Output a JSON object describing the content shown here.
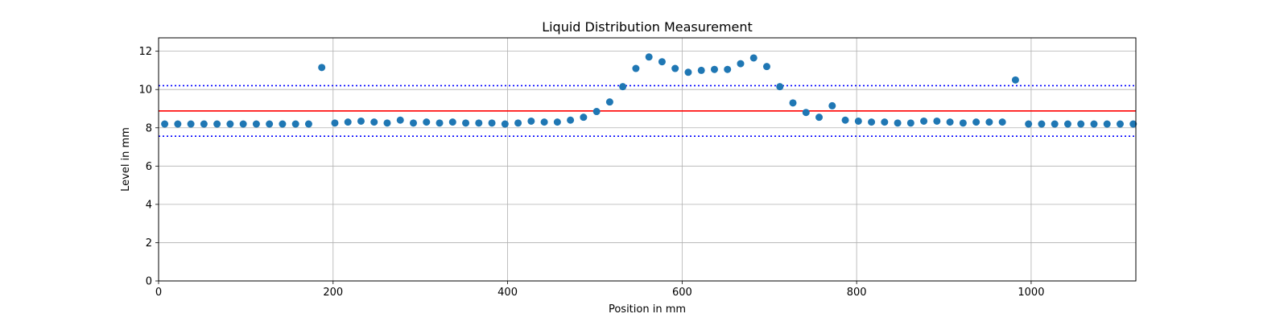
{
  "chart_data": {
    "type": "scatter",
    "title": "Liquid Distribution Measurement",
    "xlabel": "Position in mm",
    "ylabel": "Level in mm",
    "xlim": [
      0,
      1120
    ],
    "ylim": [
      0,
      12.7
    ],
    "xticks": [
      0,
      200,
      400,
      600,
      800,
      1000
    ],
    "yticks": [
      0,
      2,
      4,
      6,
      8,
      10,
      12
    ],
    "grid": true,
    "point_color": "#1f77b4",
    "reference_lines": [
      {
        "y": 8.88,
        "color": "#ff0000",
        "style": "solid"
      },
      {
        "y": 10.2,
        "color": "#0000ff",
        "style": "dotted"
      },
      {
        "y": 7.56,
        "color": "#0000ff",
        "style": "dotted"
      }
    ],
    "x": [
      7,
      22,
      37,
      52,
      67,
      82,
      97,
      112,
      127,
      142,
      157,
      172,
      187,
      202,
      217,
      232,
      247,
      262,
      277,
      292,
      307,
      322,
      337,
      352,
      367,
      382,
      397,
      412,
      427,
      442,
      457,
      472,
      487,
      502,
      517,
      532,
      547,
      562,
      577,
      592,
      607,
      622,
      637,
      652,
      667,
      682,
      697,
      712,
      727,
      742,
      757,
      772,
      787,
      802,
      817,
      832,
      847,
      862,
      877,
      892,
      907,
      922,
      937,
      952,
      967,
      982,
      997,
      1012,
      1027,
      1042,
      1057,
      1072,
      1087,
      1102,
      1117
    ],
    "y": [
      8.2,
      8.2,
      8.2,
      8.2,
      8.2,
      8.2,
      8.2,
      8.2,
      8.2,
      8.2,
      8.2,
      8.2,
      11.15,
      8.25,
      8.3,
      8.35,
      8.3,
      8.25,
      8.4,
      8.25,
      8.3,
      8.25,
      8.3,
      8.25,
      8.25,
      8.25,
      8.2,
      8.25,
      8.35,
      8.3,
      8.3,
      8.4,
      8.55,
      8.85,
      9.35,
      10.15,
      11.1,
      11.7,
      11.45,
      11.1,
      10.9,
      11.0,
      11.05,
      11.05,
      11.35,
      11.65,
      11.2,
      10.15,
      9.3,
      8.8,
      8.55,
      9.15,
      8.4,
      8.35,
      8.3,
      8.3,
      8.25,
      8.25,
      8.35,
      8.35,
      8.3,
      8.25,
      8.3,
      8.3,
      8.3,
      10.5,
      8.2,
      8.2,
      8.2,
      8.2,
      8.2,
      8.2,
      8.2,
      8.2,
      8.2
    ]
  }
}
